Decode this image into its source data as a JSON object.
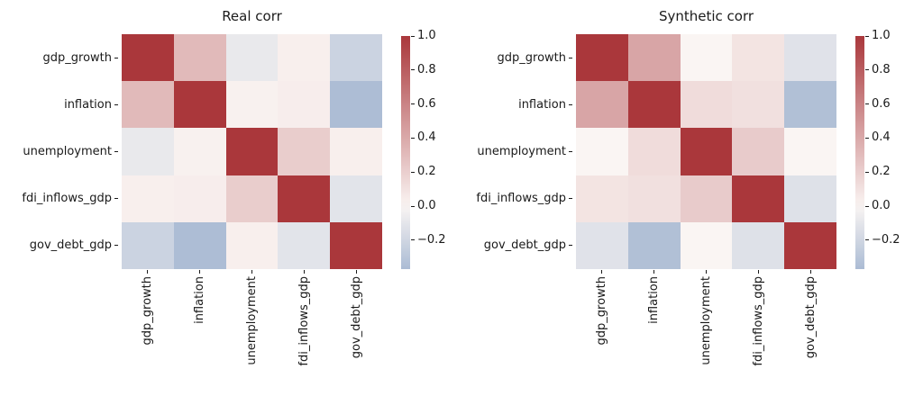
{
  "figure": {
    "background": "#ffffff",
    "text_color": "#1a1a1a"
  },
  "colormap": {
    "type": "diverging-red-white-blue",
    "center_color": "#faf5f3",
    "positive_max_color": "#aa373b",
    "positive_max_value": 1.0,
    "negative_ref_color": "#8fa7c9",
    "negative_ref_value": -0.5
  },
  "chart_data": [
    {
      "type": "heatmap",
      "title": "Real corr",
      "categories": [
        "gdp_growth",
        "inflation",
        "unemployment",
        "fdi_inflows_gdp",
        "gov_debt_gdp"
      ],
      "matrix": [
        [
          1.0,
          0.31,
          -0.08,
          0.03,
          -0.22
        ],
        [
          0.31,
          1.0,
          0.02,
          0.04,
          -0.36
        ],
        [
          -0.08,
          0.02,
          1.0,
          0.21,
          0.03
        ],
        [
          0.03,
          0.04,
          0.21,
          1.0,
          -0.11
        ],
        [
          -0.22,
          -0.36,
          0.03,
          -0.11,
          1.0
        ]
      ],
      "vmax": 1.0,
      "vmin": -0.37,
      "colorbar_tick_values": [
        1.0,
        0.8,
        0.6,
        0.4,
        0.2,
        0.0,
        -0.2
      ],
      "colorbar_tick_labels": [
        "1.0",
        "0.8",
        "0.6",
        "0.4",
        "0.2",
        "0.0",
        "−0.2"
      ],
      "legend": "colorbar-right",
      "grid": false
    },
    {
      "type": "heatmap",
      "title": "Synthetic corr",
      "categories": [
        "gdp_growth",
        "inflation",
        "unemployment",
        "fdi_inflows_gdp",
        "gov_debt_gdp"
      ],
      "matrix": [
        [
          1.0,
          0.42,
          0.0,
          0.09,
          -0.12
        ],
        [
          0.42,
          1.0,
          0.13,
          0.11,
          -0.34
        ],
        [
          0.0,
          0.13,
          1.0,
          0.22,
          0.0
        ],
        [
          0.09,
          0.11,
          0.22,
          1.0,
          -0.13
        ],
        [
          -0.12,
          -0.34,
          0.0,
          -0.13,
          1.0
        ]
      ],
      "vmax": 1.0,
      "vmin": -0.37,
      "colorbar_tick_values": [
        1.0,
        0.8,
        0.6,
        0.4,
        0.2,
        0.0,
        -0.2
      ],
      "colorbar_tick_labels": [
        "1.0",
        "0.8",
        "0.6",
        "0.4",
        "0.2",
        "0.0",
        "−0.2"
      ],
      "legend": "colorbar-right",
      "grid": false
    }
  ]
}
